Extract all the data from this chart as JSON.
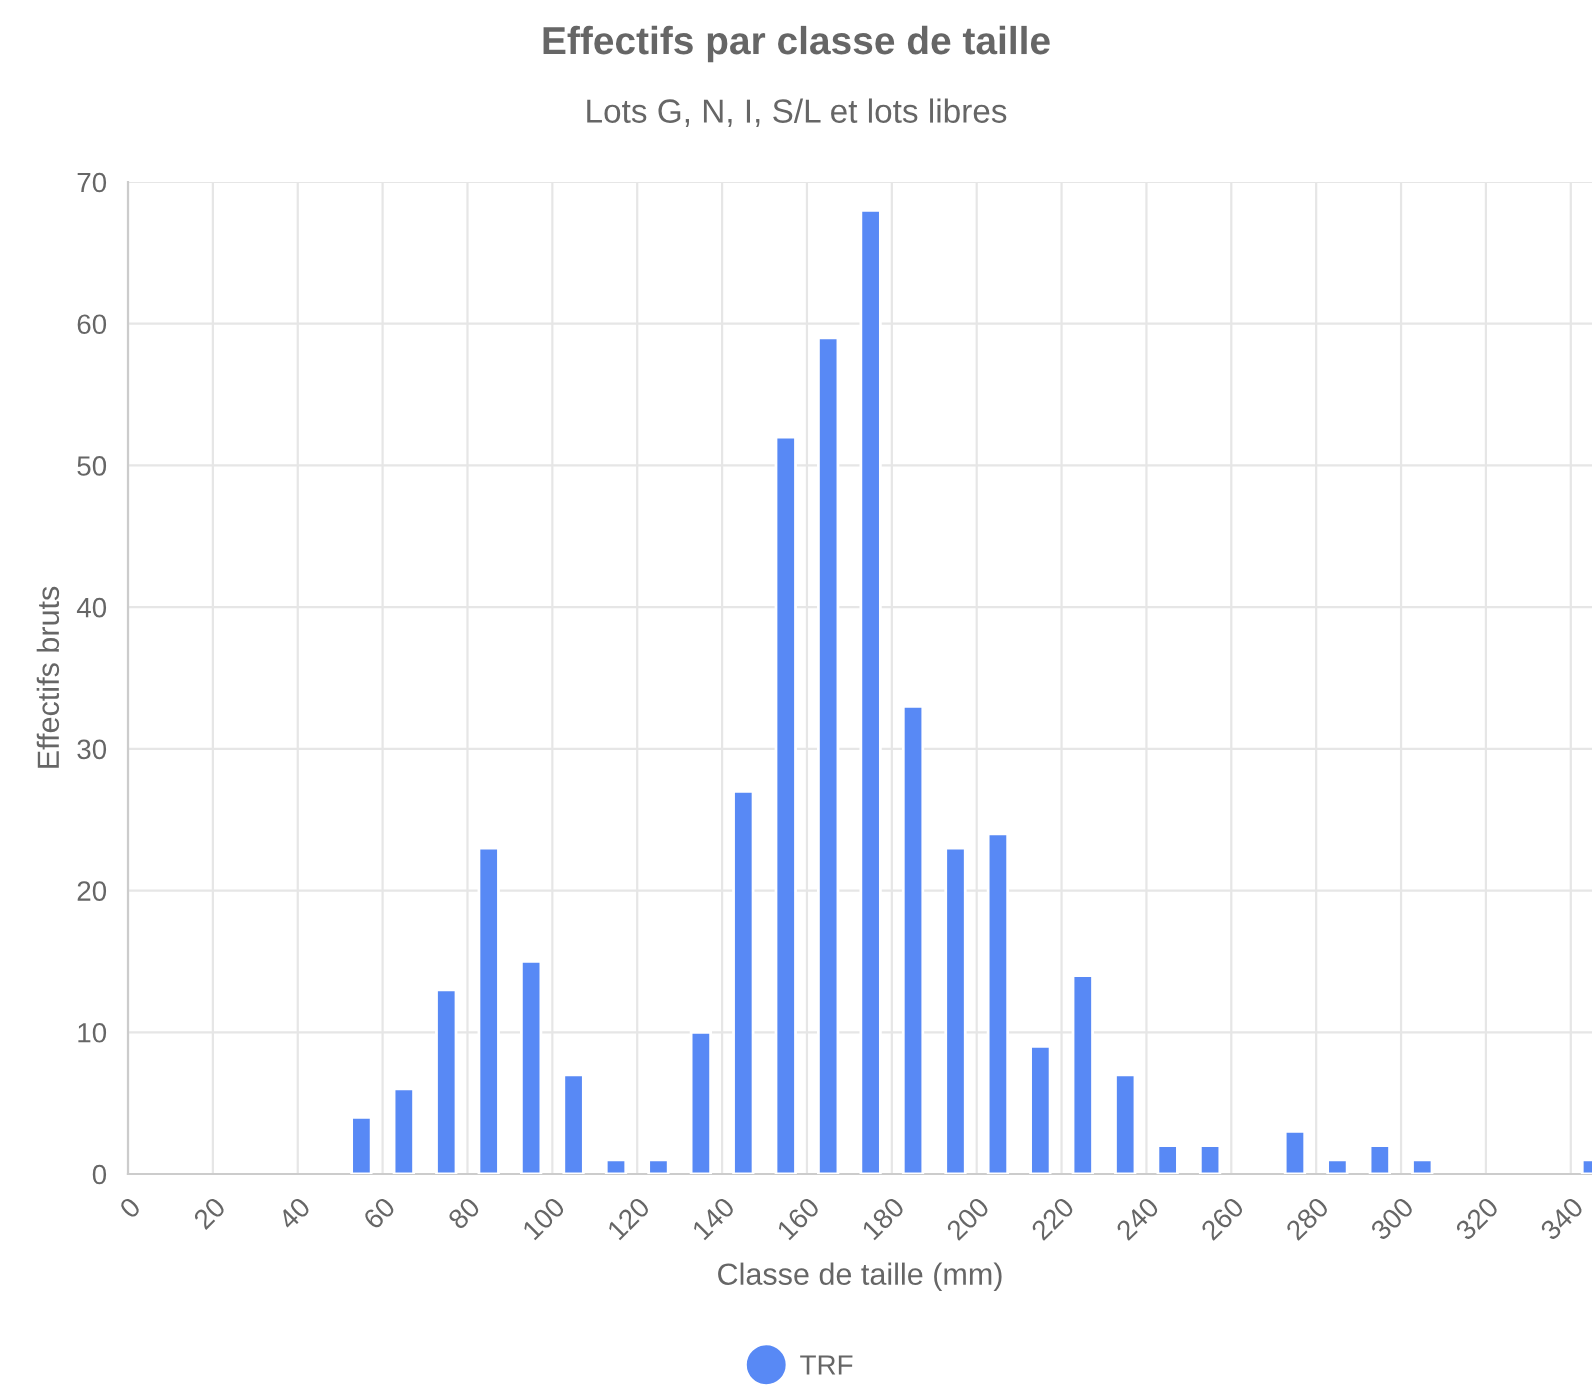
{
  "chart_data": {
    "type": "bar",
    "title": "Effectifs par classe de taille",
    "subtitle": "Lots G, N, I, S/L et lots libres",
    "xlabel": "Classe de taille (mm)",
    "ylabel": "Effectifs bruts",
    "x": [
      55,
      65,
      75,
      85,
      95,
      105,
      115,
      125,
      135,
      145,
      155,
      165,
      175,
      185,
      195,
      205,
      215,
      225,
      235,
      245,
      255,
      275,
      285,
      295,
      305,
      345
    ],
    "series": [
      {
        "name": "TRF",
        "color": "#5889f5",
        "values": [
          4,
          6,
          13,
          23,
          15,
          7,
          1,
          1,
          10,
          27,
          52,
          59,
          68,
          33,
          23,
          24,
          9,
          14,
          7,
          2,
          2,
          3,
          1,
          2,
          1,
          1
        ]
      }
    ],
    "xlim": [
      0,
      345
    ],
    "xticks": [
      0,
      20,
      40,
      60,
      80,
      100,
      120,
      140,
      160,
      180,
      200,
      220,
      240,
      260,
      280,
      300,
      320,
      340
    ],
    "ylim": [
      0,
      70
    ],
    "yticks": [
      0,
      10,
      20,
      30,
      40,
      50,
      60,
      70
    ],
    "grid": true,
    "legend": "bottom"
  }
}
